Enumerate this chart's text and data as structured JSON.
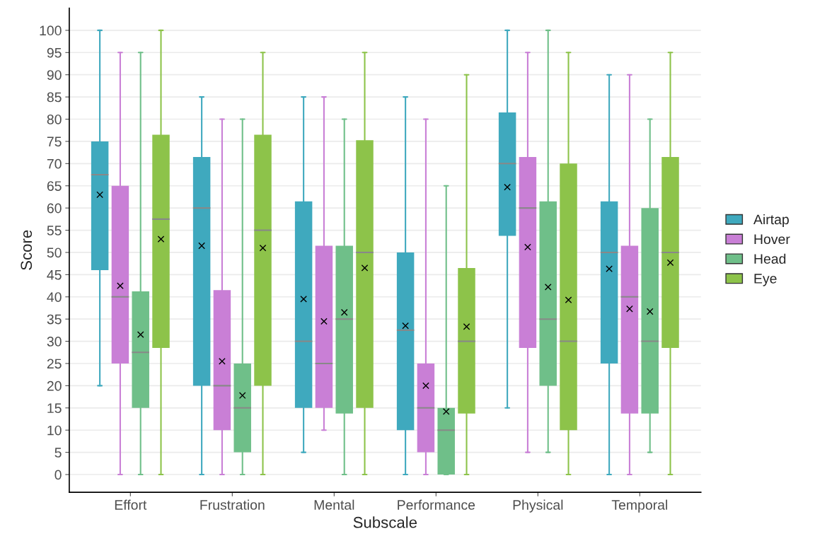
{
  "chart_data": {
    "type": "box",
    "xlabel": "Subscale",
    "ylabel": "Score",
    "categories": [
      "Effort",
      "Frustration",
      "Mental",
      "Performance",
      "Physical",
      "Temporal"
    ],
    "ylim": [
      -4,
      105
    ],
    "yticks": [
      0,
      5,
      10,
      15,
      20,
      25,
      30,
      35,
      40,
      45,
      50,
      55,
      60,
      65,
      70,
      75,
      80,
      85,
      90,
      95,
      100
    ],
    "grid": "y",
    "legend": "right",
    "marker": "cross",
    "series": [
      {
        "name": "Airtap",
        "color": "#3fa9be",
        "boxes": [
          {
            "low": 20,
            "q1": 46,
            "median": 67.5,
            "q3": 75,
            "high": 100,
            "mean": 63
          },
          {
            "low": 0,
            "q1": 20,
            "median": 60,
            "q3": 71.5,
            "high": 85,
            "mean": 51.5
          },
          {
            "low": 5,
            "q1": 15,
            "median": 30,
            "q3": 61.5,
            "high": 85,
            "mean": 39.5
          },
          {
            "low": 0,
            "q1": 10,
            "median": 32.5,
            "q3": 50,
            "high": 85,
            "mean": 33.5
          },
          {
            "low": 15,
            "q1": 53.75,
            "median": 70,
            "q3": 81.5,
            "high": 100,
            "mean": 64.7
          },
          {
            "low": 0,
            "q1": 25,
            "median": 50,
            "q3": 61.5,
            "high": 90,
            "mean": 46.3
          }
        ]
      },
      {
        "name": "Hover",
        "color": "#c97fd6",
        "boxes": [
          {
            "low": 0,
            "q1": 25,
            "median": 40,
            "q3": 65,
            "high": 95,
            "mean": 42.5
          },
          {
            "low": 0,
            "q1": 10,
            "median": 20,
            "q3": 41.5,
            "high": 80,
            "mean": 25.5
          },
          {
            "low": 10,
            "q1": 15,
            "median": 25,
            "q3": 51.5,
            "high": 85,
            "mean": 34.5
          },
          {
            "low": 0,
            "q1": 5,
            "median": 15,
            "q3": 25,
            "high": 80,
            "mean": 20
          },
          {
            "low": 5,
            "q1": 28.5,
            "median": 60,
            "q3": 71.5,
            "high": 95,
            "mean": 51.2
          },
          {
            "low": 0,
            "q1": 13.75,
            "median": 40,
            "q3": 51.5,
            "high": 90,
            "mean": 37.3
          }
        ]
      },
      {
        "name": "Head",
        "color": "#6fbf89",
        "boxes": [
          {
            "low": 0,
            "q1": 15,
            "median": 27.5,
            "q3": 41.25,
            "high": 95,
            "mean": 31.5
          },
          {
            "low": 0,
            "q1": 5,
            "median": 15,
            "q3": 25,
            "high": 80,
            "mean": 17.8
          },
          {
            "low": 0,
            "q1": 13.75,
            "median": 35,
            "q3": 51.5,
            "high": 80,
            "mean": 36.5
          },
          {
            "low": 0,
            "q1": 0,
            "median": 10,
            "q3": 15,
            "high": 65,
            "mean": 14.2
          },
          {
            "low": 5,
            "q1": 20,
            "median": 35,
            "q3": 61.5,
            "high": 100,
            "mean": 42.2
          },
          {
            "low": 5,
            "q1": 13.75,
            "median": 30,
            "q3": 60,
            "high": 80,
            "mean": 36.7
          }
        ]
      },
      {
        "name": "Eye",
        "color": "#8dc34a",
        "boxes": [
          {
            "low": 0,
            "q1": 28.5,
            "median": 57.5,
            "q3": 76.5,
            "high": 100,
            "mean": 53
          },
          {
            "low": 0,
            "q1": 20,
            "median": 55,
            "q3": 76.5,
            "high": 95,
            "mean": 51
          },
          {
            "low": 0,
            "q1": 15,
            "median": 50,
            "q3": 75.25,
            "high": 95,
            "mean": 46.5
          },
          {
            "low": 0,
            "q1": 13.75,
            "median": 30,
            "q3": 46.5,
            "high": 90,
            "mean": 33.3
          },
          {
            "low": 0,
            "q1": 10,
            "median": 30,
            "q3": 70,
            "high": 95,
            "mean": 39.3
          },
          {
            "low": 0,
            "q1": 28.5,
            "median": 50,
            "q3": 71.5,
            "high": 95,
            "mean": 47.7
          }
        ]
      }
    ]
  }
}
